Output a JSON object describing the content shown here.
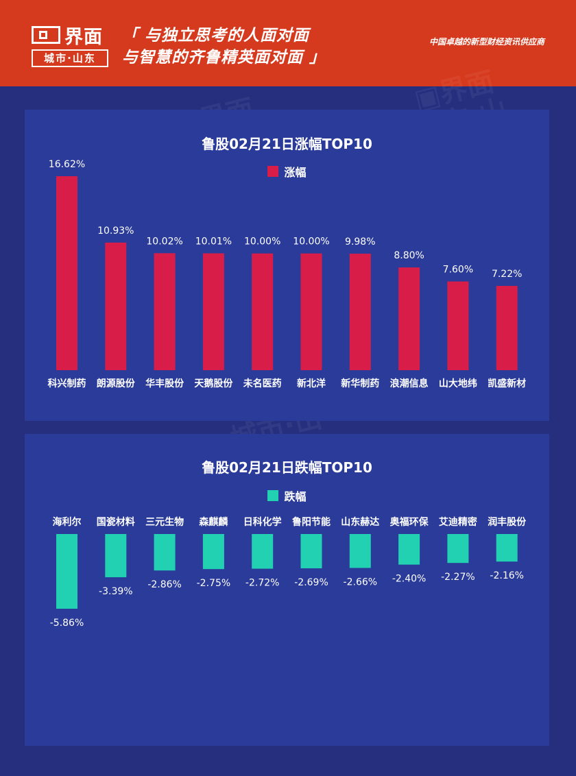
{
  "header": {
    "logo_name": "界面",
    "logo_city": "城市·山东",
    "slogan_line1": "「 与独立思考的人面对面",
    "slogan_line2": "与智慧的齐鲁精英面对面 」",
    "tagline": "中国卓越的新型财经资讯供应商",
    "bg_color": "#d63a1e"
  },
  "chart_data": [
    {
      "type": "bar",
      "title": "鲁股02月21日涨幅TOP10",
      "legend": "涨幅",
      "color": "#d81e48",
      "ylim": [
        0,
        17
      ],
      "categories": [
        "科兴制药",
        "朗源股份",
        "华丰股份",
        "天鹅股份",
        "未名医药",
        "新北洋",
        "新华制药",
        "浪潮信息",
        "山大地纬",
        "凯盛新材"
      ],
      "values": [
        16.62,
        10.93,
        10.02,
        10.01,
        10.0,
        10.0,
        9.98,
        8.8,
        7.6,
        7.22
      ],
      "value_labels": [
        "16.62%",
        "10.93%",
        "10.02%",
        "10.01%",
        "10.00%",
        "10.00%",
        "9.98%",
        "8.80%",
        "7.60%",
        "7.22%"
      ]
    },
    {
      "type": "bar",
      "title": "鲁股02月21日跌幅TOP10",
      "legend": "跌幅",
      "color": "#22d0b2",
      "ylim": [
        -6,
        0
      ],
      "categories": [
        "海利尔",
        "国瓷材料",
        "三元生物",
        "森麒麟",
        "日科化学",
        "鲁阳节能",
        "山东赫达",
        "奥福环保",
        "艾迪精密",
        "润丰股份"
      ],
      "values": [
        -5.86,
        -3.39,
        -2.86,
        -2.75,
        -2.72,
        -2.69,
        -2.66,
        -2.4,
        -2.27,
        -2.16
      ],
      "value_labels": [
        "-5.86%",
        "-3.39%",
        "-2.86%",
        "-2.75%",
        "-2.72%",
        "-2.69%",
        "-2.66%",
        "-2.40%",
        "-2.27%",
        "-2.16%"
      ]
    }
  ]
}
